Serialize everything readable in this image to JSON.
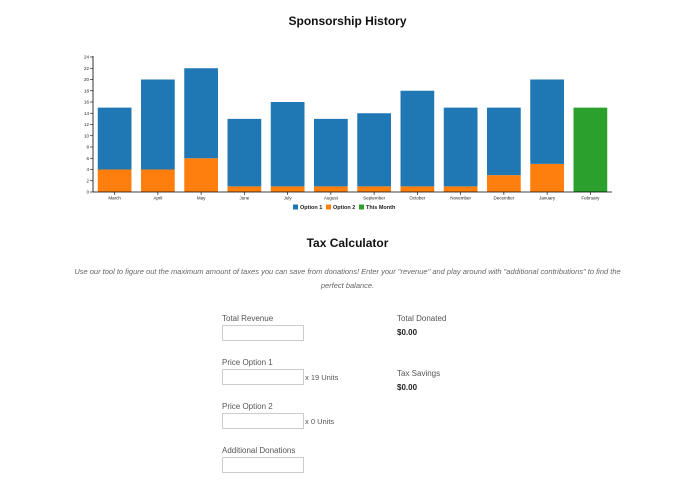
{
  "chart_title": "Sponsorship History",
  "chart_data": {
    "type": "bar",
    "stacked": true,
    "categories": [
      "March",
      "April",
      "May",
      "June",
      "July",
      "August",
      "September",
      "October",
      "November",
      "December",
      "January",
      "February"
    ],
    "series": [
      {
        "name": "Option 1",
        "color": "#1f77b4",
        "values": [
          11,
          16,
          16,
          12,
          15,
          12,
          13,
          17,
          14,
          12,
          15,
          0
        ]
      },
      {
        "name": "Option 2",
        "color": "#ff7f0e",
        "values": [
          4,
          4,
          6,
          1,
          1,
          1,
          1,
          1,
          1,
          3,
          5,
          0
        ]
      },
      {
        "name": "This Month",
        "color": "#2ca02c",
        "values": [
          0,
          0,
          0,
          0,
          0,
          0,
          0,
          0,
          0,
          0,
          0,
          15
        ]
      }
    ],
    "yticks": [
      "0",
      "2",
      "4",
      "6",
      "8",
      "10",
      "12",
      "14",
      "16",
      "18",
      "20",
      "22",
      "24"
    ],
    "ylim": [
      0,
      24
    ],
    "grid": false,
    "legend_position": "bottom"
  },
  "calculator": {
    "title": "Tax Calculator",
    "intro": "Use our tool to figure out the maximum amount of taxes you can save from donations! Enter your \"revenue\" and play around with \"additional contributions\" to find the perfect balance.",
    "fields": {
      "total_revenue": {
        "label": "Total Revenue",
        "value": ""
      },
      "price_option_1": {
        "label": "Price Option 1",
        "value": "",
        "units": "x 19 Units"
      },
      "price_option_2": {
        "label": "Price Option 2",
        "value": "",
        "units": "x 0 Units"
      },
      "additional_donations": {
        "label": "Additional Donations",
        "value": ""
      }
    },
    "summary": {
      "total_donated_label": "Total Donated",
      "total_donated_value": "$0.00",
      "tax_savings_label": "Tax Savings",
      "tax_savings_value": "$0.00"
    }
  }
}
